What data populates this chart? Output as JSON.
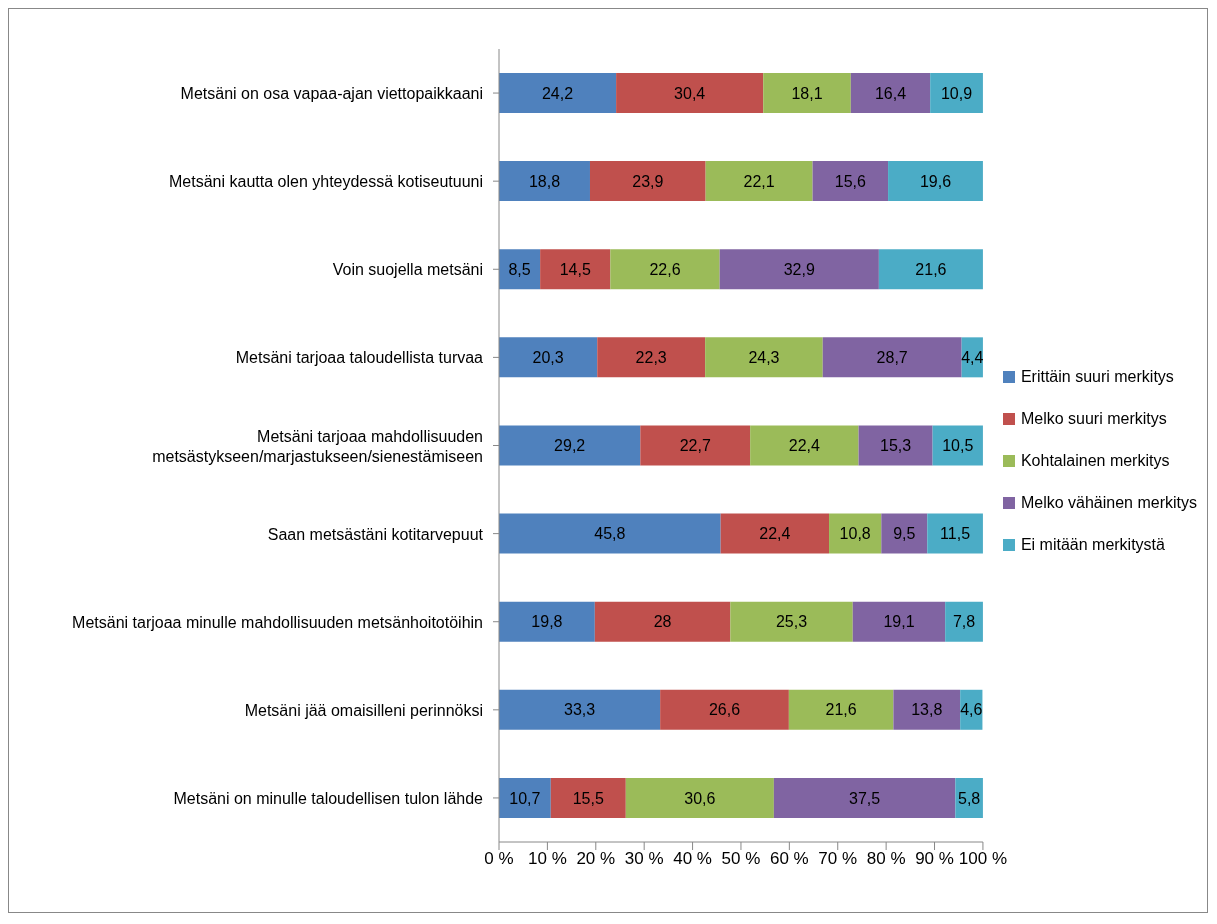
{
  "chart_data": {
    "type": "bar",
    "orientation": "horizontal",
    "stacked": true,
    "categories": [
      "Metsäni on osa vapaa-ajan viettopaikkaani",
      "Metsäni kautta olen yhteydessä kotiseutuuni",
      "Voin suojella metsäni",
      "Metsäni tarjoaa taloudellista turvaa",
      "Metsäni tarjoaa mahdollisuuden metsästykseen/marjastukseen/sienestämiseen",
      "Saan metsästäni kotitarvepuut",
      "Metsäni tarjoaa minulle mahdollisuuden metsänhoitotöihin",
      "Metsäni jää omaisilleni perinnöksi",
      "Metsäni on minulle taloudellisen tulon lähde"
    ],
    "series": [
      {
        "name": "Erittäin suuri merkitys",
        "color": "#4f81bd",
        "values": [
          24.2,
          18.8,
          8.5,
          20.3,
          29.2,
          45.8,
          19.8,
          33.3,
          10.7
        ],
        "value_labels": [
          "24,2",
          "18,8",
          "8,5",
          "20,3",
          "29,2",
          "45,8",
          "19,8",
          "33,3",
          "10,7"
        ]
      },
      {
        "name": "Melko suuri merkitys",
        "color": "#c0504d",
        "values": [
          30.4,
          23.9,
          14.5,
          22.3,
          22.7,
          22.4,
          28,
          26.6,
          15.5
        ],
        "value_labels": [
          "30,4",
          "23,9",
          "14,5",
          "22,3",
          "22,7",
          "22,4",
          "28",
          "26,6",
          "15,5"
        ]
      },
      {
        "name": "Kohtalainen merkitys",
        "color": "#9bbb59",
        "values": [
          18.1,
          22.1,
          22.6,
          24.3,
          22.4,
          10.8,
          25.3,
          21.6,
          30.6
        ],
        "value_labels": [
          "18,1",
          "22,1",
          "22,6",
          "24,3",
          "22,4",
          "10,8",
          "25,3",
          "21,6",
          "30,6"
        ]
      },
      {
        "name": "Melko vähäinen merkitys",
        "color": "#8064a2",
        "values": [
          16.4,
          15.6,
          32.9,
          28.7,
          15.3,
          9.5,
          19.1,
          13.8,
          37.5
        ],
        "value_labels": [
          "16,4",
          "15,6",
          "32,9",
          "28,7",
          "15,3",
          "9,5",
          "19,1",
          "13,8",
          "37,5"
        ]
      },
      {
        "name": "Ei mitään merkitystä",
        "color": "#4bacc6",
        "values": [
          10.9,
          19.6,
          21.6,
          4.4,
          10.5,
          11.5,
          7.8,
          4.6,
          5.8
        ],
        "value_labels": [
          "10,9",
          "19,6",
          "21,6",
          "4,4",
          "10,5",
          "11,5",
          "7,8",
          "4,6",
          "5,8"
        ]
      }
    ],
    "xlim": [
      0,
      100
    ],
    "xticks": [
      {
        "value": 0,
        "label": "0 %"
      },
      {
        "value": 10,
        "label": "10 %"
      },
      {
        "value": 20,
        "label": "20 %"
      },
      {
        "value": 30,
        "label": "30 %"
      },
      {
        "value": 40,
        "label": "40 %"
      },
      {
        "value": 50,
        "label": "50 %"
      },
      {
        "value": 60,
        "label": "60 %"
      },
      {
        "value": 70,
        "label": "70 %"
      },
      {
        "value": 80,
        "label": "80 %"
      },
      {
        "value": 90,
        "label": "90 %"
      },
      {
        "value": 100,
        "label": "100 %"
      }
    ],
    "legend": "right"
  }
}
